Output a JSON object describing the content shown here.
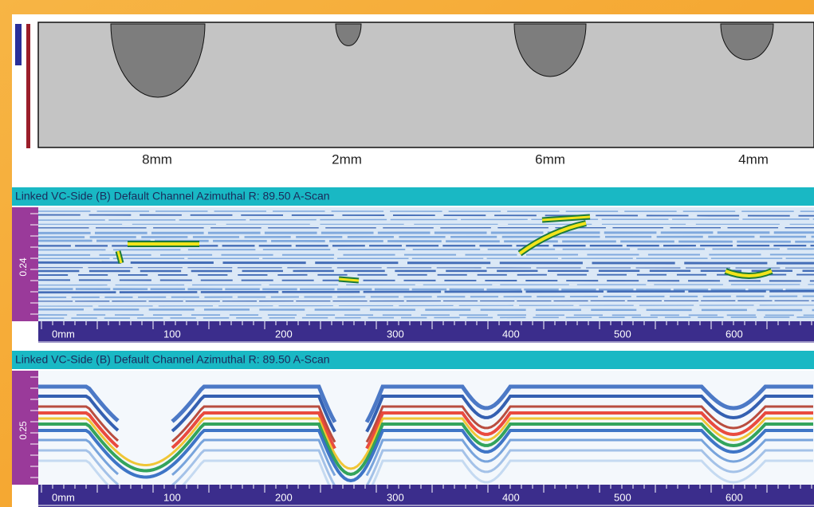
{
  "defect_view": {
    "labels": [
      "8mm",
      "2mm",
      "6mm",
      "4mm"
    ]
  },
  "scans": [
    {
      "header": "Linked VC-Side (B) Default Channel Azimuthal   R: 89.50 A-Scan",
      "depth_label": "0.24",
      "axis_labels": [
        "0mm",
        "100",
        "200",
        "300",
        "400",
        "500",
        "600"
      ]
    },
    {
      "header": "Linked VC-Side (B) Default Channel Azimuthal   R: 89.50 A-Scan",
      "depth_label": "0.25",
      "axis_labels": [
        "0mm",
        "100",
        "200",
        "300",
        "400",
        "500",
        "600"
      ]
    }
  ]
}
